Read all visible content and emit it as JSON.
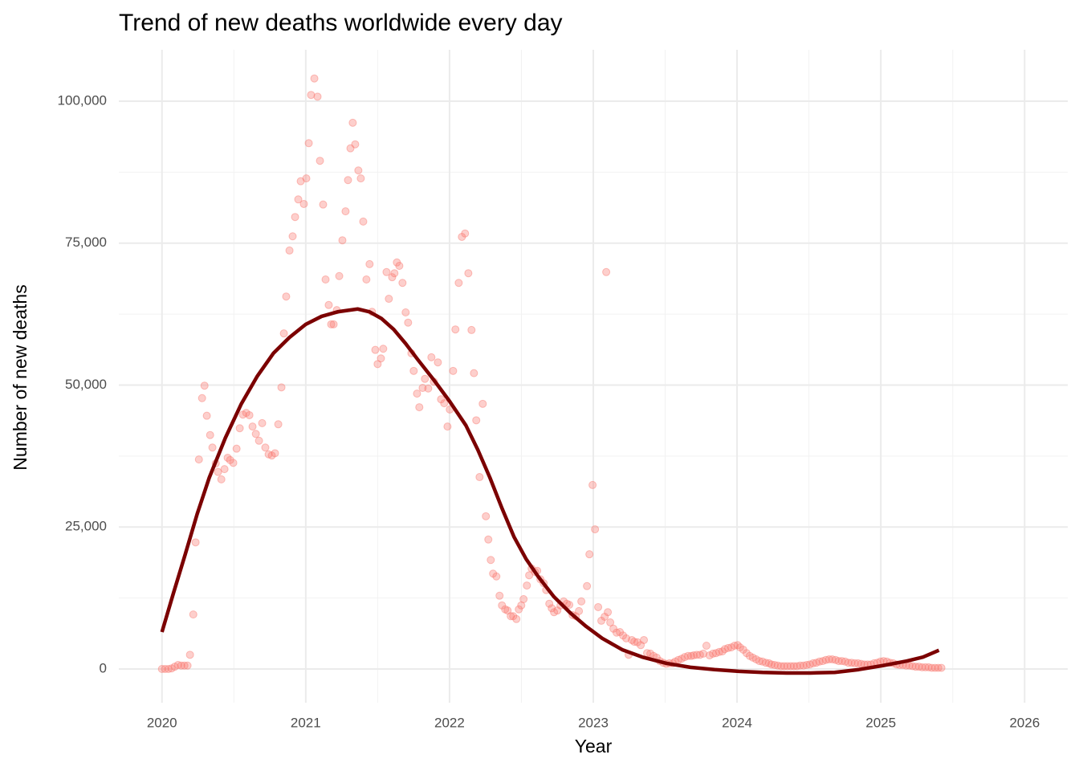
{
  "chart_data": {
    "type": "scatter",
    "title": "Trend of new deaths worldwide every day",
    "x_label": "Year",
    "y_label": "Number of new deaths",
    "xlim": [
      2019.7,
      2026.3
    ],
    "ylim": [
      -5940,
      109050
    ],
    "xticks": [
      2020,
      2021,
      2022,
      2023,
      2024,
      2025,
      2026
    ],
    "yticks": [
      0,
      {
        "value": 25000,
        "label": "25,000"
      },
      {
        "value": 50000,
        "label": "50,000"
      },
      {
        "value": 75000,
        "label": "75,000"
      },
      {
        "value": 100000,
        "label": "100,000"
      }
    ],
    "grid": true,
    "series": [
      {
        "color": "#f8766d",
        "type": "scatter",
        "x": [
          2020.0,
          2020.022,
          2020.045,
          2020.067,
          2020.089,
          2020.112,
          2020.134,
          2020.156,
          2020.178,
          2020.195,
          2020.218,
          2020.234,
          2020.257,
          2020.279,
          2020.296,
          2020.312,
          2020.335,
          2020.351,
          2020.374,
          2020.39,
          2020.413,
          2020.435,
          2020.457,
          2020.474,
          2020.496,
          2020.519,
          2020.541,
          2020.563,
          2020.586,
          2020.608,
          2020.63,
          2020.653,
          2020.675,
          2020.697,
          2020.719,
          2020.742,
          2020.764,
          2020.786,
          2020.809,
          2020.831,
          2020.848,
          2020.864,
          2020.887,
          2020.909,
          2020.926,
          2020.948,
          2020.965,
          2020.987,
          2021.004,
          2021.021,
          2021.037,
          2021.06,
          2021.082,
          2021.099,
          2021.121,
          2021.138,
          2021.16,
          2021.177,
          2021.194,
          2021.216,
          2021.233,
          2021.255,
          2021.277,
          2021.294,
          2021.311,
          2021.327,
          2021.344,
          2021.366,
          2021.383,
          2021.4,
          2021.422,
          2021.444,
          2021.461,
          2021.484,
          2021.5,
          2021.523,
          2021.539,
          2021.562,
          2021.578,
          2021.601,
          2021.617,
          2021.634,
          2021.651,
          2021.673,
          2021.695,
          2021.712,
          2021.735,
          2021.751,
          2021.774,
          2021.79,
          2021.813,
          2021.829,
          2021.852,
          2021.874,
          2021.891,
          2021.919,
          2021.941,
          2021.963,
          2021.986,
          2022.002,
          2022.025,
          2022.041,
          2022.064,
          2022.086,
          2022.108,
          2022.131,
          2022.153,
          2022.17,
          2022.186,
          2022.209,
          2022.231,
          2022.253,
          2022.27,
          2022.287,
          2022.303,
          2022.326,
          2022.348,
          2022.365,
          2022.387,
          2022.404,
          2022.426,
          2022.443,
          2022.465,
          2022.482,
          2022.499,
          2022.515,
          2022.538,
          2022.554,
          2022.571,
          2022.594,
          2022.61,
          2022.632,
          2022.655,
          2022.672,
          2022.694,
          2022.711,
          2022.727,
          2022.75,
          2022.772,
          2022.794,
          2022.816,
          2022.833,
          2022.856,
          2022.878,
          2022.9,
          2022.917,
          2022.956,
          2022.973,
          2022.995,
          2023.012,
          2023.034,
          2023.056,
          2023.079,
          2023.09,
          2023.101,
          2023.118,
          2023.14,
          2023.162,
          2023.185,
          2023.207,
          2023.229,
          2023.246,
          2023.268,
          2023.285,
          2023.307,
          2023.33,
          2023.352,
          2023.374,
          2023.397,
          2023.419,
          2023.441,
          2023.463,
          2023.486,
          2023.508,
          2023.53,
          2023.553,
          2023.569,
          2023.592,
          2023.614,
          2023.636,
          2023.659,
          2023.681,
          2023.698,
          2023.72,
          2023.742,
          2023.765,
          2023.787,
          2023.809,
          2023.832,
          2023.854,
          2023.876,
          2023.898,
          2023.915,
          2023.938,
          2023.96,
          2023.982,
          2024.004,
          2024.021,
          2024.043,
          2024.066,
          2024.088,
          2024.11,
          2024.133,
          2024.155,
          2024.177,
          2024.2,
          2024.222,
          2024.239,
          2024.261,
          2024.283,
          2024.306,
          2024.328,
          2024.35,
          2024.373,
          2024.395,
          2024.417,
          2024.439,
          2024.462,
          2024.484,
          2024.506,
          2024.529,
          2024.551,
          2024.573,
          2024.596,
          2024.618,
          2024.64,
          2024.662,
          2024.685,
          2024.707,
          2024.729,
          2024.752,
          2024.774,
          2024.796,
          2024.819,
          2024.841,
          2024.863,
          2024.886,
          2024.908,
          2024.93,
          2024.953,
          2024.975,
          2024.997,
          2025.019,
          2025.042,
          2025.064,
          2025.086,
          2025.109,
          2025.131,
          2025.153,
          2025.176,
          2025.198,
          2025.22,
          2025.243,
          2025.265,
          2025.287,
          2025.31,
          2025.332,
          2025.354,
          2025.377,
          2025.399,
          2025.421
        ],
        "values": [
          0,
          0,
          0,
          100,
          400,
          700,
          600,
          600,
          600,
          2500,
          9600,
          22300,
          36900,
          47700,
          49900,
          44600,
          41200,
          39000,
          36200,
          34700,
          33400,
          35200,
          37200,
          36800,
          36300,
          38800,
          42400,
          44800,
          45100,
          44700,
          42700,
          41400,
          40200,
          43300,
          39000,
          37800,
          37600,
          38000,
          43100,
          49600,
          59100,
          65600,
          73700,
          76200,
          79600,
          82700,
          85900,
          81900,
          86400,
          92600,
          101100,
          104000,
          100800,
          89500,
          81800,
          68600,
          64100,
          60700,
          60700,
          63200,
          69200,
          75500,
          80600,
          86100,
          91700,
          96200,
          92400,
          87800,
          86400,
          78800,
          68600,
          71300,
          62900,
          56200,
          53700,
          54700,
          56400,
          69900,
          65200,
          69000,
          69700,
          71600,
          71000,
          68000,
          62800,
          61000,
          55600,
          52500,
          48500,
          46100,
          49500,
          51100,
          49400,
          54900,
          50600,
          54000,
          47500,
          46800,
          42700,
          45700,
          52500,
          59800,
          68000,
          76100,
          76700,
          69700,
          59700,
          52100,
          43800,
          33800,
          46700,
          26900,
          22800,
          19200,
          16800,
          16300,
          12900,
          11200,
          10500,
          10300,
          9300,
          9300,
          8800,
          10500,
          11200,
          12300,
          14700,
          16500,
          17700,
          17100,
          17300,
          15800,
          15100,
          13900,
          11500,
          10700,
          10000,
          10300,
          11200,
          11900,
          11500,
          11300,
          9500,
          9300,
          10200,
          11900,
          14600,
          20200,
          32400,
          24600,
          10900,
          8500,
          9200,
          69900,
          10000,
          8200,
          7100,
          6400,
          6500,
          5900,
          5400,
          2500,
          5100,
          4800,
          4700,
          4200,
          5100,
          2800,
          2700,
          2300,
          2000,
          1400,
          1100,
          900,
          1000,
          1000,
          1300,
          1600,
          1800,
          2100,
          2300,
          2300,
          2400,
          2500,
          2500,
          2700,
          4100,
          2400,
          2700,
          2800,
          3000,
          3100,
          3500,
          3700,
          3800,
          4100,
          4200,
          3800,
          3400,
          2800,
          2300,
          2000,
          1700,
          1400,
          1300,
          1100,
          1000,
          800,
          700,
          600,
          500,
          500,
          500,
          500,
          500,
          500,
          600,
          600,
          700,
          800,
          1000,
          1100,
          1300,
          1400,
          1600,
          1700,
          1700,
          1600,
          1400,
          1400,
          1300,
          1100,
          1100,
          1000,
          1000,
          900,
          800,
          800,
          800,
          1000,
          1100,
          1300,
          1400,
          1300,
          1100,
          1000,
          800,
          700,
          700,
          600,
          600,
          500,
          400,
          400,
          300,
          300,
          300,
          200,
          200,
          200,
          200
        ]
      },
      {
        "color": "#7b0000",
        "type": "line",
        "x": [
          2020.0,
          2020.078,
          2020.162,
          2020.245,
          2020.329,
          2020.441,
          2020.552,
          2020.664,
          2020.775,
          2020.887,
          2021.0,
          2021.11,
          2021.221,
          2021.361,
          2021.444,
          2021.528,
          2021.612,
          2021.695,
          2021.779,
          2021.891,
          2022.002,
          2022.114,
          2022.197,
          2022.281,
          2022.365,
          2022.448,
          2022.532,
          2022.616,
          2022.727,
          2022.839,
          2022.95,
          2023.062,
          2023.201,
          2023.341,
          2023.508,
          2023.675,
          2023.843,
          2024.01,
          2024.177,
          2024.345,
          2024.512,
          2024.679,
          2024.847,
          2025.014,
          2025.181,
          2025.293,
          2025.404
        ],
        "values": [
          6500,
          13200,
          20200,
          27300,
          33700,
          40700,
          46700,
          51600,
          55600,
          58400,
          60700,
          62100,
          62900,
          63400,
          62900,
          61700,
          59800,
          57300,
          54500,
          50900,
          47100,
          42900,
          38600,
          33700,
          28300,
          23300,
          19400,
          16300,
          12700,
          9900,
          7500,
          5400,
          3400,
          2100,
          1000,
          300,
          -100,
          -400,
          -600,
          -700,
          -700,
          -600,
          -100,
          600,
          1400,
          2100,
          3300
        ]
      }
    ]
  }
}
